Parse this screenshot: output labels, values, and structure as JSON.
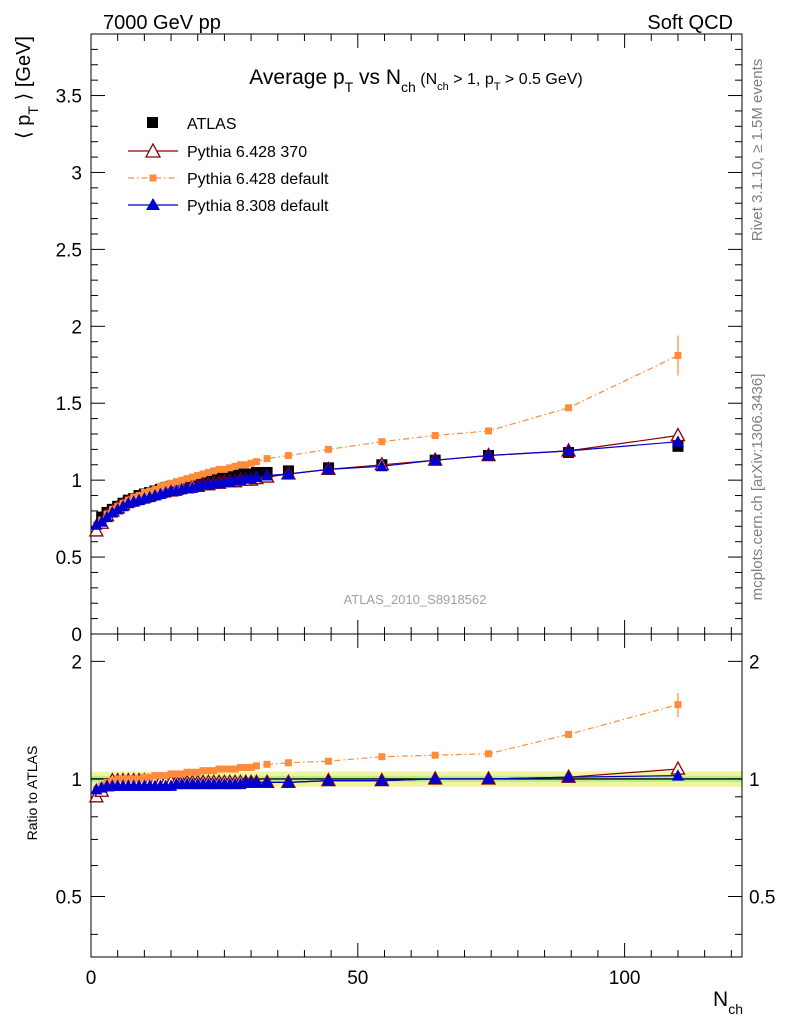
{
  "header": {
    "left": "7000 GeV pp",
    "right": "Soft QCD"
  },
  "side_labels": {
    "upper": "Rivet 3.1.10, ≥ 1.5M events",
    "lower": "mcplots.cern.ch [arXiv:1306.3436]"
  },
  "watermark": "ATLAS_2010_S8918562",
  "colors": {
    "atlas": "#000000",
    "py6_370": "#8b0000",
    "py6_default": "#ff8c3a",
    "py8": "#0000cc",
    "band_outer": "#eef59e",
    "band_inner": "#b8ee8c"
  },
  "chart_data": [
    {
      "type": "scatter",
      "title_parts": {
        "main": "Average p",
        "sub1": "T",
        "mid": " vs N",
        "sub2": "ch",
        "cond_open": " (N",
        "cond_sub1": "ch",
        "cond_mid": " > 1, p",
        "cond_sub2": "T",
        "cond_close": " > 0.5 GeV)"
      },
      "ylabel_parts": {
        "open": "⟨ p",
        "sub": "T",
        "close": " ⟩  [GeV]"
      },
      "xlim": [
        0,
        122
      ],
      "ylim": [
        0,
        3.9
      ],
      "yticks": [
        "0",
        "0.5",
        "1",
        "1.5",
        "2",
        "2.5",
        "3",
        "3.5"
      ],
      "ytick_values": [
        0,
        0.5,
        1,
        1.5,
        2,
        2.5,
        3,
        3.5
      ],
      "series": [
        {
          "name": "ATLAS",
          "marker": "square-filled",
          "x": [
            2,
            3,
            4,
            5,
            6,
            7,
            8,
            9,
            10,
            11,
            12,
            13,
            14,
            15,
            16,
            17,
            18,
            19,
            20,
            21,
            22,
            23,
            24,
            25,
            26,
            27,
            28,
            29,
            30,
            31,
            33,
            37,
            44.5,
            54.5,
            64.5,
            74.5,
            89.5,
            110
          ],
          "y": [
            0.76,
            0.79,
            0.81,
            0.83,
            0.85,
            0.87,
            0.88,
            0.9,
            0.91,
            0.92,
            0.93,
            0.94,
            0.95,
            0.96,
            0.96,
            0.97,
            0.98,
            0.99,
            0.99,
            1.0,
            1.01,
            1.01,
            1.02,
            1.02,
            1.03,
            1.03,
            1.04,
            1.04,
            1.04,
            1.05,
            1.05,
            1.06,
            1.08,
            1.1,
            1.13,
            1.16,
            1.18,
            1.22
          ]
        },
        {
          "name": "Pythia 6.428 370",
          "marker": "triangle-open",
          "x": [
            1,
            2,
            3,
            4,
            5,
            6,
            7,
            8,
            9,
            10,
            11,
            12,
            13,
            14,
            15,
            16,
            17,
            18,
            19,
            20,
            21,
            22,
            23,
            24,
            25,
            26,
            27,
            28,
            29,
            30,
            31,
            33,
            37,
            44.5,
            54.5,
            64.5,
            74.5,
            89.5,
            110
          ],
          "y": [
            0.67,
            0.72,
            0.77,
            0.8,
            0.82,
            0.84,
            0.86,
            0.87,
            0.88,
            0.89,
            0.9,
            0.91,
            0.92,
            0.93,
            0.93,
            0.94,
            0.95,
            0.95,
            0.96,
            0.96,
            0.97,
            0.97,
            0.98,
            0.98,
            0.99,
            0.99,
            0.99,
            1.0,
            1.0,
            1.0,
            1.01,
            1.02,
            1.04,
            1.07,
            1.1,
            1.13,
            1.16,
            1.19,
            1.29
          ]
        },
        {
          "name": "Pythia 6.428 default",
          "marker": "square-small",
          "x": [
            1,
            2,
            3,
            4,
            5,
            6,
            7,
            8,
            9,
            10,
            11,
            12,
            13,
            14,
            15,
            16,
            17,
            18,
            19,
            20,
            21,
            22,
            23,
            24,
            25,
            26,
            27,
            28,
            29,
            30,
            31,
            33,
            37,
            44.5,
            54.5,
            64.5,
            74.5,
            89.5,
            110
          ],
          "y": [
            0.71,
            0.74,
            0.78,
            0.81,
            0.83,
            0.85,
            0.87,
            0.89,
            0.9,
            0.92,
            0.93,
            0.94,
            0.96,
            0.97,
            0.98,
            0.99,
            1.0,
            1.01,
            1.02,
            1.03,
            1.04,
            1.05,
            1.06,
            1.07,
            1.07,
            1.08,
            1.09,
            1.1,
            1.1,
            1.11,
            1.12,
            1.14,
            1.16,
            1.2,
            1.25,
            1.29,
            1.32,
            1.47,
            1.81
          ],
          "yerr_last": 0.13
        },
        {
          "name": "Pythia 8.308 default",
          "marker": "triangle-filled",
          "x": [
            1,
            2,
            3,
            4,
            5,
            6,
            7,
            8,
            9,
            10,
            11,
            12,
            13,
            14,
            15,
            16,
            17,
            18,
            19,
            20,
            21,
            22,
            23,
            24,
            25,
            26,
            27,
            28,
            29,
            30,
            31,
            33,
            37,
            44.5,
            54.5,
            64.5,
            74.5,
            89.5,
            110
          ],
          "y": [
            0.71,
            0.73,
            0.76,
            0.79,
            0.81,
            0.83,
            0.85,
            0.86,
            0.87,
            0.88,
            0.89,
            0.9,
            0.91,
            0.92,
            0.93,
            0.93,
            0.94,
            0.95,
            0.95,
            0.96,
            0.97,
            0.97,
            0.98,
            0.98,
            0.99,
            0.99,
            1.0,
            1.0,
            1.01,
            1.01,
            1.02,
            1.03,
            1.04,
            1.07,
            1.09,
            1.13,
            1.16,
            1.19,
            1.25
          ]
        }
      ]
    },
    {
      "type": "scatter",
      "ylabel": "Ratio to ATLAS",
      "xlabel_parts": {
        "main": "N",
        "sub": "ch"
      },
      "xlim": [
        0,
        122
      ],
      "ylim": [
        0.35,
        2.35
      ],
      "yticks": [
        "0.5",
        "1",
        "2"
      ],
      "ytick_values": [
        0.5,
        1,
        2
      ],
      "xticks": [
        "0",
        "50",
        "100"
      ],
      "xtick_values": [
        0,
        50,
        100
      ],
      "band_outer": [
        0.955,
        1.045
      ],
      "band_inner": [
        0.982,
        1.018
      ],
      "series": [
        {
          "name": "Pythia 6.428 370",
          "marker": "triangle-open",
          "x": [
            1,
            2,
            3,
            4,
            5,
            6,
            7,
            8,
            9,
            10,
            11,
            12,
            13,
            14,
            15,
            16,
            17,
            18,
            19,
            20,
            21,
            22,
            23,
            24,
            25,
            26,
            27,
            28,
            29,
            30,
            31,
            33,
            37,
            44.5,
            54.5,
            64.5,
            74.5,
            89.5,
            110
          ],
          "y": [
            0.9,
            0.93,
            0.96,
            0.99,
            0.99,
            0.99,
            0.99,
            0.99,
            0.99,
            0.99,
            0.98,
            0.98,
            0.98,
            0.98,
            0.98,
            0.98,
            0.98,
            0.98,
            0.98,
            0.98,
            0.98,
            0.98,
            0.98,
            0.98,
            0.98,
            0.98,
            0.98,
            0.98,
            0.98,
            0.98,
            0.98,
            0.98,
            0.98,
            0.99,
            0.99,
            1.0,
            1.0,
            1.01,
            1.06
          ]
        },
        {
          "name": "Pythia 6.428 default",
          "marker": "square-small",
          "x": [
            1,
            2,
            3,
            4,
            5,
            6,
            7,
            8,
            9,
            10,
            11,
            12,
            13,
            14,
            15,
            16,
            17,
            18,
            19,
            20,
            21,
            22,
            23,
            24,
            25,
            26,
            27,
            28,
            29,
            30,
            31,
            33,
            37,
            44.5,
            54.5,
            64.5,
            74.5,
            89.5,
            110
          ],
          "y": [
            0.94,
            0.96,
            0.98,
            0.99,
            1.0,
            1.0,
            1.0,
            1.0,
            1.0,
            1.01,
            1.01,
            1.02,
            1.02,
            1.02,
            1.03,
            1.03,
            1.03,
            1.04,
            1.04,
            1.04,
            1.05,
            1.05,
            1.05,
            1.06,
            1.06,
            1.06,
            1.06,
            1.07,
            1.07,
            1.07,
            1.08,
            1.09,
            1.1,
            1.11,
            1.14,
            1.15,
            1.16,
            1.3,
            1.55
          ],
          "yerr_last": 0.11
        },
        {
          "name": "Pythia 8.308 default",
          "marker": "triangle-filled",
          "x": [
            1,
            2,
            3,
            4,
            5,
            6,
            7,
            8,
            9,
            10,
            11,
            12,
            13,
            14,
            15,
            16,
            17,
            18,
            19,
            20,
            21,
            22,
            23,
            24,
            25,
            26,
            27,
            28,
            29,
            30,
            31,
            33,
            37,
            44.5,
            54.5,
            64.5,
            74.5,
            89.5,
            110
          ],
          "y": [
            0.94,
            0.95,
            0.96,
            0.96,
            0.96,
            0.96,
            0.96,
            0.96,
            0.96,
            0.96,
            0.96,
            0.96,
            0.96,
            0.96,
            0.96,
            0.97,
            0.97,
            0.97,
            0.97,
            0.97,
            0.97,
            0.97,
            0.97,
            0.97,
            0.97,
            0.97,
            0.97,
            0.97,
            0.98,
            0.98,
            0.98,
            0.98,
            0.98,
            0.99,
            0.99,
            1.0,
            1.0,
            1.01,
            1.02
          ]
        }
      ]
    }
  ]
}
